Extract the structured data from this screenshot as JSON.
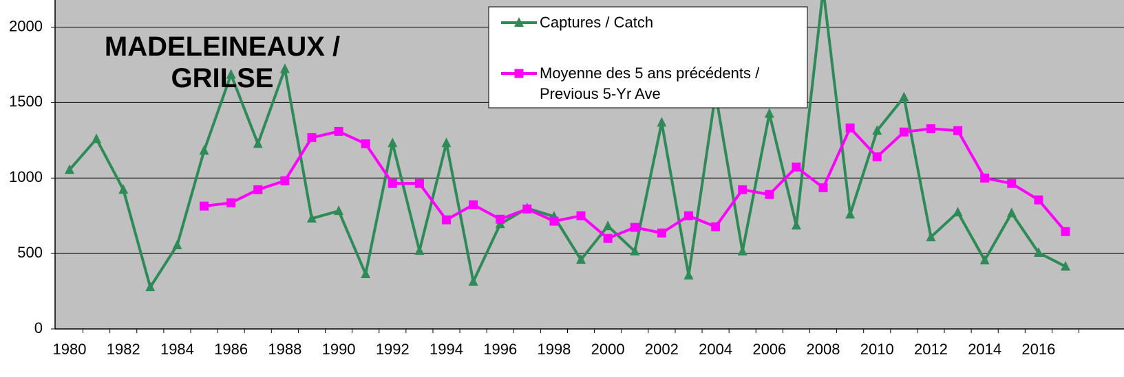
{
  "chart_data": {
    "type": "line",
    "title": "MADELEINEAUX / GRILSE",
    "categories": [
      "1980",
      null,
      "1982",
      null,
      "1984",
      null,
      "1986",
      null,
      "1988",
      null,
      "1990",
      null,
      "1992",
      null,
      "1994",
      null,
      "1996",
      null,
      "1998",
      null,
      "2000",
      null,
      "2002",
      null,
      "2004",
      null,
      "2006",
      null,
      "2008",
      null,
      "2010",
      null,
      "2012",
      null,
      "2014",
      null,
      "2016",
      null
    ],
    "series": [
      {
        "name": "Captures / Catch",
        "color": "#2e8b57",
        "marker": "triangle",
        "values": [
          1055,
          1259,
          923,
          277,
          555,
          1182,
          1686,
          1227,
          1723,
          732,
          782,
          364,
          1232,
          518,
          1232,
          314,
          695,
          800,
          745,
          459,
          682,
          514,
          1368,
          355,
          1560,
          514,
          1427,
          686,
          2250,
          759,
          1314,
          1536,
          609,
          773,
          455,
          768,
          505,
          414
        ]
      },
      {
        "name": "Moyenne des 5 ans précédents / Previous 5-Yr Ave",
        "color": "#ff00ff",
        "marker": "square",
        "values": [
          null,
          null,
          null,
          null,
          null,
          814,
          836,
          923,
          982,
          1268,
          1309,
          1227,
          964,
          964,
          723,
          823,
          727,
          795,
          714,
          750,
          600,
          673,
          636,
          750,
          677,
          923,
          891,
          1073,
          936,
          1332,
          1141,
          1305,
          1327,
          1314,
          1000,
          964,
          855,
          645
        ]
      }
    ],
    "ylim": [
      0,
      2180
    ],
    "yticks": [
      0,
      500,
      1000,
      1500,
      2000
    ],
    "grid": true,
    "legend": "top-center"
  }
}
